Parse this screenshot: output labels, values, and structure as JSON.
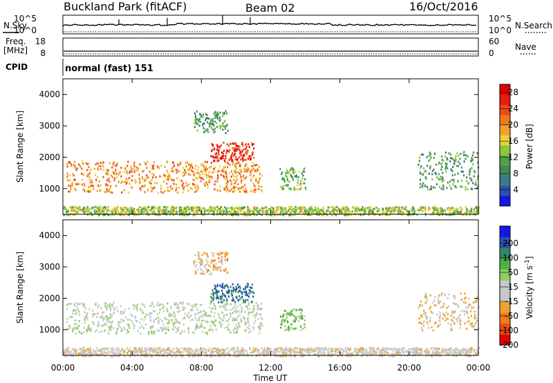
{
  "header": {
    "site": "Buckland Park (fitACF)",
    "beam": "Beam 02",
    "date": "16/Oct/2016"
  },
  "strip_labels": {
    "nsky": "N.Sky",
    "nsearch": "N.Search",
    "freq": "Freq.",
    "freq_unit": "[MHz]",
    "nave": "Nave",
    "cpid": "CPID",
    "cpid_value": "normal (fast) 151",
    "noise_ticks_left": [
      "10^5",
      "10^0"
    ],
    "noise_ticks_right": [
      "10^5",
      "10^0"
    ],
    "freq_ticks": [
      "18",
      "8"
    ],
    "nave_ticks": [
      "60",
      "0"
    ]
  },
  "colors": {
    "power_scale": [
      "#1616e6",
      "#2b4fb0",
      "#3a7a8a",
      "#3e8a5a",
      "#52a04a",
      "#8cc640",
      "#e6d23c",
      "#f2a22a",
      "#f07a1c",
      "#ee4a14",
      "#e61c0c",
      "#e60000"
    ],
    "velocity_scale": [
      "#e60000",
      "#ee4a14",
      "#f07a1c",
      "#f2a22a",
      "#c8c8c8",
      "#c8c8c8",
      "#8cd060",
      "#52b040",
      "#2e8a6a",
      "#2b4fb0",
      "#1616e6"
    ]
  },
  "chart_data": [
    {
      "type": "heatmap",
      "panel": "power",
      "xlabel": "",
      "ylabel": "Slant Range [km]",
      "x_ticks": [
        "00:00",
        "04:00",
        "08:00",
        "12:00",
        "16:00",
        "20:00",
        "00:00"
      ],
      "y_ticks": [
        "1000",
        "2000",
        "3000",
        "4000"
      ],
      "ylim": [
        180,
        4500
      ],
      "xlim_hours": [
        0,
        24
      ],
      "colorbar_label": "Power [dB]",
      "colorbar_ticks": [
        "4",
        "8",
        "12",
        "16",
        "20",
        "24",
        "28"
      ],
      "colorbar_range": [
        0,
        30
      ],
      "echo_regions": [
        {
          "t_start": 0.2,
          "t_end": 11.5,
          "range_low": 900,
          "range_high": 1900,
          "power_db": 20
        },
        {
          "t_start": 8.5,
          "t_end": 11.0,
          "range_low": 1900,
          "range_high": 2500,
          "power_db": 26
        },
        {
          "t_start": 7.5,
          "t_end": 9.5,
          "range_low": 2800,
          "range_high": 3500,
          "power_db": 10
        },
        {
          "t_start": 12.5,
          "t_end": 14.0,
          "range_low": 1000,
          "range_high": 1700,
          "power_db": 12
        },
        {
          "t_start": 20.5,
          "t_end": 24.0,
          "range_low": 1000,
          "range_high": 2200,
          "power_db": 10
        },
        {
          "t_start": 0.0,
          "t_end": 24.0,
          "range_low": 180,
          "range_high": 450,
          "power_db": 14
        }
      ]
    },
    {
      "type": "heatmap",
      "panel": "velocity",
      "xlabel": "Time UT",
      "ylabel": "Slant Range [km]",
      "x_ticks": [
        "00:00",
        "04:00",
        "08:00",
        "12:00",
        "16:00",
        "20:00",
        "00:00"
      ],
      "y_ticks": [
        "1000",
        "2000",
        "3000",
        "4000"
      ],
      "ylim": [
        180,
        4500
      ],
      "xlim_hours": [
        0,
        24
      ],
      "colorbar_label": "Velocity [m s^-1]",
      "colorbar_ticks": [
        "200",
        "100",
        "50",
        "15",
        "-15",
        "-50",
        "-100",
        "-200"
      ],
      "colorbar_range": [
        -250,
        250
      ],
      "echo_regions": [
        {
          "t_start": 0.2,
          "t_end": 11.5,
          "range_low": 900,
          "range_high": 1900,
          "velocity": 0
        },
        {
          "t_start": 8.5,
          "t_end": 11.0,
          "range_low": 1900,
          "range_high": 2500,
          "velocity": 150
        },
        {
          "t_start": 7.5,
          "t_end": 9.5,
          "range_low": 2800,
          "range_high": 3500,
          "velocity": -80
        },
        {
          "t_start": 12.5,
          "t_end": 14.0,
          "range_low": 1000,
          "range_high": 1700,
          "velocity": 60
        },
        {
          "t_start": 20.5,
          "t_end": 24.0,
          "range_low": 1000,
          "range_high": 2200,
          "velocity": -60
        },
        {
          "t_start": 0.0,
          "t_end": 24.0,
          "range_low": 180,
          "range_high": 450,
          "velocity": -40
        }
      ]
    }
  ]
}
